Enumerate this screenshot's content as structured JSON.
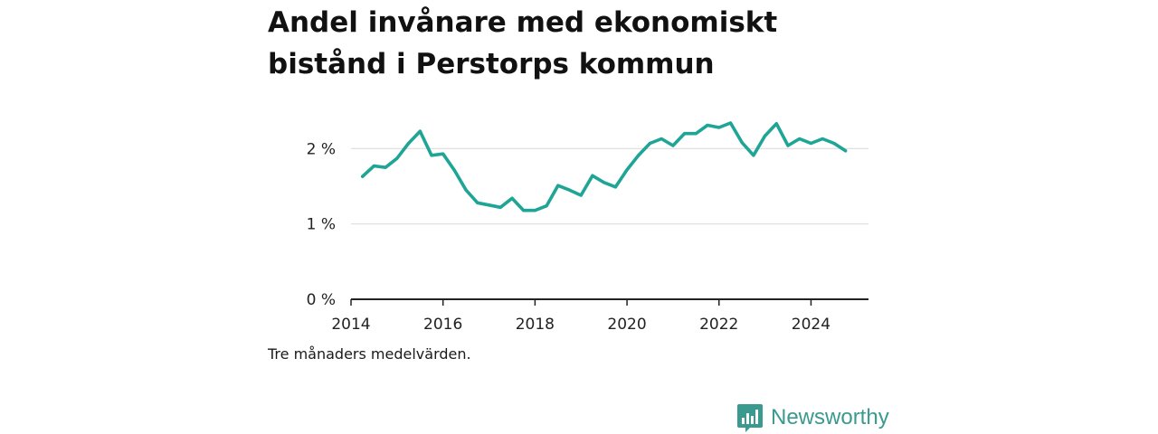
{
  "title": "Andel invånare med ekonomiskt bistånd i Perstorps kommun",
  "note": "Tre månaders medelvärden.",
  "brand": {
    "name": "Newsworthy",
    "logo_icon": "bar-chart-speech-bubble-icon"
  },
  "colors": {
    "line": "#1fa595",
    "brand": "#3a9a8f",
    "grid": "#dddddd",
    "axis": "#222222"
  },
  "chart_data": {
    "type": "line",
    "title": "Andel invånare med ekonomiskt bistånd i Perstorps kommun",
    "xlabel": "",
    "ylabel": "",
    "ylim": [
      0,
      2.4
    ],
    "xlim": [
      "2014-01",
      "2025-04"
    ],
    "grid": true,
    "y_ticks": [
      {
        "value": 0,
        "label": "0 %"
      },
      {
        "value": 1,
        "label": "1 %"
      },
      {
        "value": 2,
        "label": "2 %"
      }
    ],
    "x_ticks": [
      {
        "value": "2014-01",
        "label": "2014"
      },
      {
        "value": "2016-01",
        "label": "2016"
      },
      {
        "value": "2018-01",
        "label": "2018"
      },
      {
        "value": "2020-01",
        "label": "2020"
      },
      {
        "value": "2022-01",
        "label": "2022"
      },
      {
        "value": "2024-01",
        "label": "2024"
      }
    ],
    "x": [
      "2014-04",
      "2014-07",
      "2014-10",
      "2015-01",
      "2015-04",
      "2015-07",
      "2015-10",
      "2016-01",
      "2016-04",
      "2016-07",
      "2016-10",
      "2017-01",
      "2017-04",
      "2017-07",
      "2017-10",
      "2018-01",
      "2018-04",
      "2018-07",
      "2018-10",
      "2019-01",
      "2019-04",
      "2019-07",
      "2019-10",
      "2020-01",
      "2020-04",
      "2020-07",
      "2020-10",
      "2021-01",
      "2021-04",
      "2021-07",
      "2021-10",
      "2022-01",
      "2022-04",
      "2022-07",
      "2022-10",
      "2023-01",
      "2023-04",
      "2023-07",
      "2023-10",
      "2024-01",
      "2024-04",
      "2024-07",
      "2024-10"
    ],
    "values": [
      1.63,
      1.77,
      1.75,
      1.87,
      2.07,
      2.23,
      1.91,
      1.93,
      1.71,
      1.45,
      1.28,
      1.25,
      1.22,
      1.34,
      1.18,
      1.18,
      1.24,
      1.51,
      1.45,
      1.38,
      1.64,
      1.55,
      1.49,
      1.72,
      1.91,
      2.07,
      2.13,
      2.04,
      2.2,
      2.2,
      2.31,
      2.28,
      2.34,
      2.08,
      1.91,
      2.17,
      2.33,
      2.04,
      2.13,
      2.07,
      2.13,
      2.07,
      1.97
    ]
  }
}
